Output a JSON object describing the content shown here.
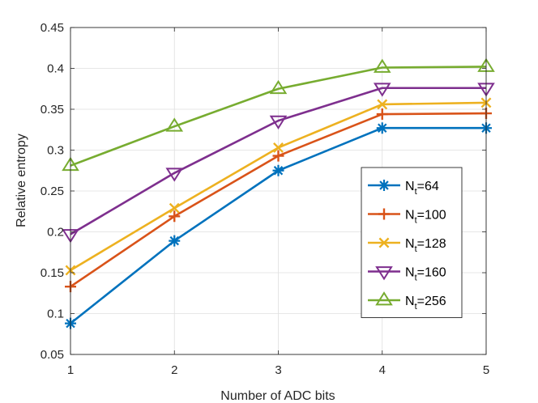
{
  "chart_data": {
    "type": "line",
    "title": "",
    "xlabel": "Number of ADC bits",
    "ylabel": "Relative entropy",
    "x": [
      1,
      2,
      3,
      4,
      5
    ],
    "xlim": [
      1,
      5
    ],
    "ylim": [
      0.05,
      0.45
    ],
    "xticks": [
      "1",
      "2",
      "3",
      "4",
      "5"
    ],
    "yticks": [
      "0.05",
      "0.1",
      "0.15",
      "0.2",
      "0.25",
      "0.3",
      "0.35",
      "0.4",
      "0.45"
    ],
    "grid": true,
    "legend_position": "right",
    "series": [
      {
        "name": "Nt=64",
        "label_main": "N",
        "label_sub": "t",
        "label_rest": "=64",
        "values": [
          0.088,
          0.189,
          0.275,
          0.327,
          0.327
        ],
        "color": "#0072bd",
        "marker": "asterisk"
      },
      {
        "name": "Nt=100",
        "label_main": "N",
        "label_sub": "t",
        "label_rest": "=100",
        "values": [
          0.133,
          0.219,
          0.293,
          0.344,
          0.345
        ],
        "color": "#d95319",
        "marker": "plus"
      },
      {
        "name": "Nt=128",
        "label_main": "N",
        "label_sub": "t",
        "label_rest": "=128",
        "values": [
          0.153,
          0.229,
          0.303,
          0.356,
          0.358
        ],
        "color": "#edb120",
        "marker": "x"
      },
      {
        "name": "Nt=160",
        "label_main": "N",
        "label_sub": "t",
        "label_rest": "=160",
        "values": [
          0.197,
          0.272,
          0.336,
          0.376,
          0.376
        ],
        "color": "#7e2f8e",
        "marker": "triangle-down"
      },
      {
        "name": "Nt=256",
        "label_main": "N",
        "label_sub": "t",
        "label_rest": "=256",
        "values": [
          0.281,
          0.329,
          0.375,
          0.401,
          0.402
        ],
        "color": "#77ac30",
        "marker": "triangle-up"
      }
    ]
  }
}
